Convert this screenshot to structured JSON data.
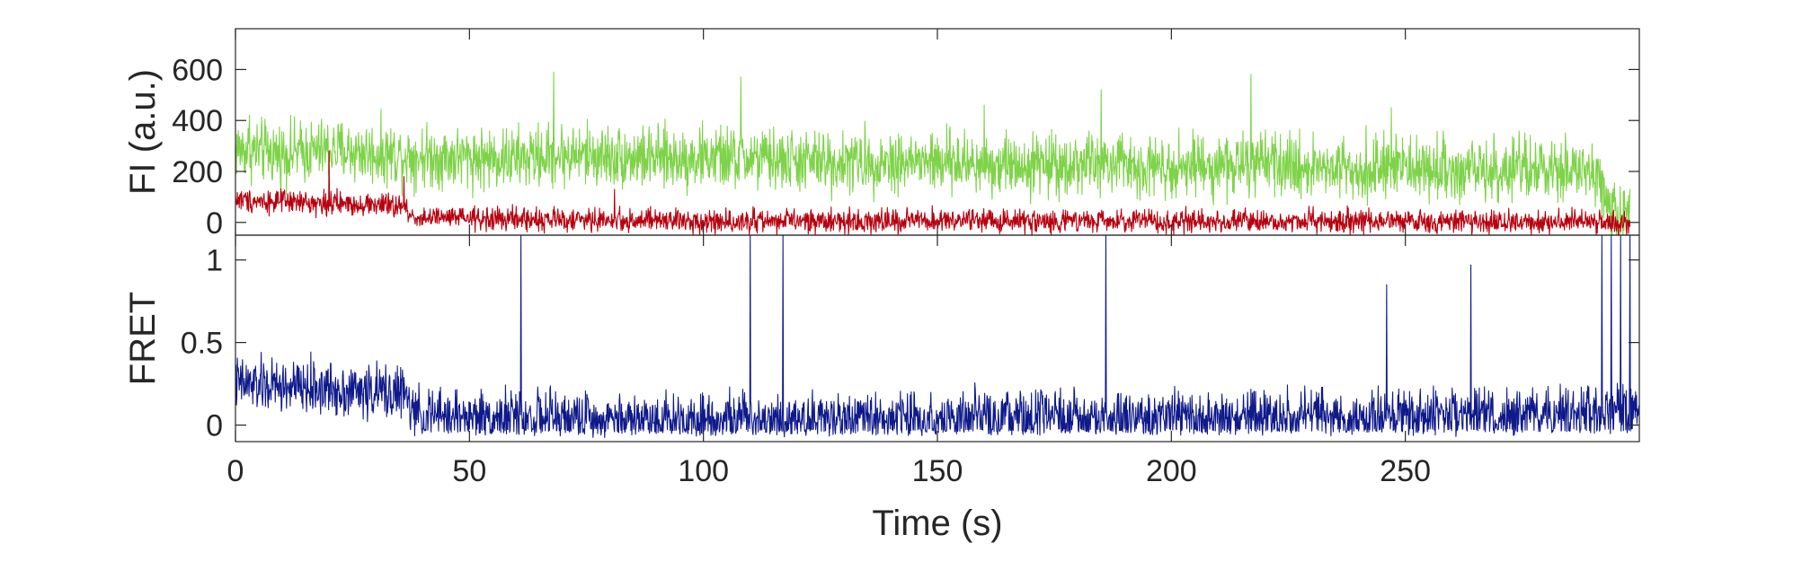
{
  "chart_data": [
    {
      "type": "line",
      "panel": "top",
      "ylabel": "FI (a.u.)",
      "xlabel": "",
      "xlim": [
        0,
        300
      ],
      "ylim": [
        -50,
        760
      ],
      "yticks": [
        0,
        200,
        400,
        600
      ],
      "yticklabels": [
        "0",
        "200",
        "400",
        "600"
      ],
      "xticks": [
        0,
        50,
        100,
        150,
        200,
        250
      ],
      "grid": false,
      "legend": "none",
      "series": [
        {
          "color": "#7ed348",
          "x": [
            0,
            10,
            20,
            30,
            40,
            50,
            60,
            70,
            80,
            90,
            100,
            110,
            120,
            130,
            140,
            150,
            160,
            170,
            180,
            190,
            200,
            210,
            220,
            230,
            240,
            250,
            260,
            270,
            280,
            290,
            295,
            298
          ],
          "y": [
            290,
            270,
            285,
            270,
            260,
            255,
            250,
            265,
            260,
            250,
            255,
            250,
            240,
            235,
            240,
            235,
            230,
            230,
            230,
            225,
            225,
            225,
            220,
            220,
            215,
            215,
            210,
            205,
            200,
            195,
            40,
            20
          ],
          "noise": 120,
          "spikes": [
            [
              3,
              420
            ],
            [
              68,
              590
            ],
            [
              108,
              570
            ],
            [
              160,
              460
            ],
            [
              185,
              520
            ],
            [
              217,
              580
            ],
            [
              247,
              450
            ]
          ]
        },
        {
          "color": "#b8000e",
          "x": [
            0,
            10,
            20,
            30,
            36,
            38,
            50,
            70,
            100,
            150,
            200,
            250,
            290,
            298
          ],
          "y": [
            90,
            80,
            75,
            70,
            60,
            20,
            15,
            10,
            5,
            5,
            5,
            5,
            0,
            -10
          ],
          "noise": 45,
          "spikes": [
            [
              20,
              280
            ],
            [
              36,
              180
            ],
            [
              81,
              130
            ]
          ]
        }
      ]
    },
    {
      "type": "line",
      "panel": "bottom",
      "ylabel": "FRET",
      "xlabel": "Time (s)",
      "xlim": [
        0,
        300
      ],
      "ylim": [
        -0.1,
        1.15
      ],
      "yticks": [
        0,
        0.5,
        1
      ],
      "yticklabels": [
        "0",
        "0.5",
        "1"
      ],
      "xticks": [
        0,
        50,
        100,
        150,
        200,
        250
      ],
      "xticklabels": [
        "0",
        "50",
        "100",
        "150",
        "200",
        "250"
      ],
      "grid": false,
      "legend": "none",
      "series": [
        {
          "color": "#0f1a8a",
          "x": [
            0,
            10,
            20,
            30,
            36,
            38,
            50,
            70,
            100,
            150,
            200,
            250,
            290,
            300
          ],
          "y": [
            0.25,
            0.23,
            0.22,
            0.2,
            0.2,
            0.06,
            0.05,
            0.04,
            0.04,
            0.04,
            0.04,
            0.05,
            0.06,
            0.1
          ],
          "noise": 0.16,
          "spikes": [
            [
              61,
              1.15
            ],
            [
              110,
              1.15
            ],
            [
              117,
              1.15
            ],
            [
              186,
              1.15
            ],
            [
              246,
              0.85
            ],
            [
              264,
              0.97
            ],
            [
              292,
              1.15
            ],
            [
              294,
              1.15
            ],
            [
              296,
              1.15
            ],
            [
              298,
              1.15
            ]
          ]
        }
      ]
    }
  ]
}
